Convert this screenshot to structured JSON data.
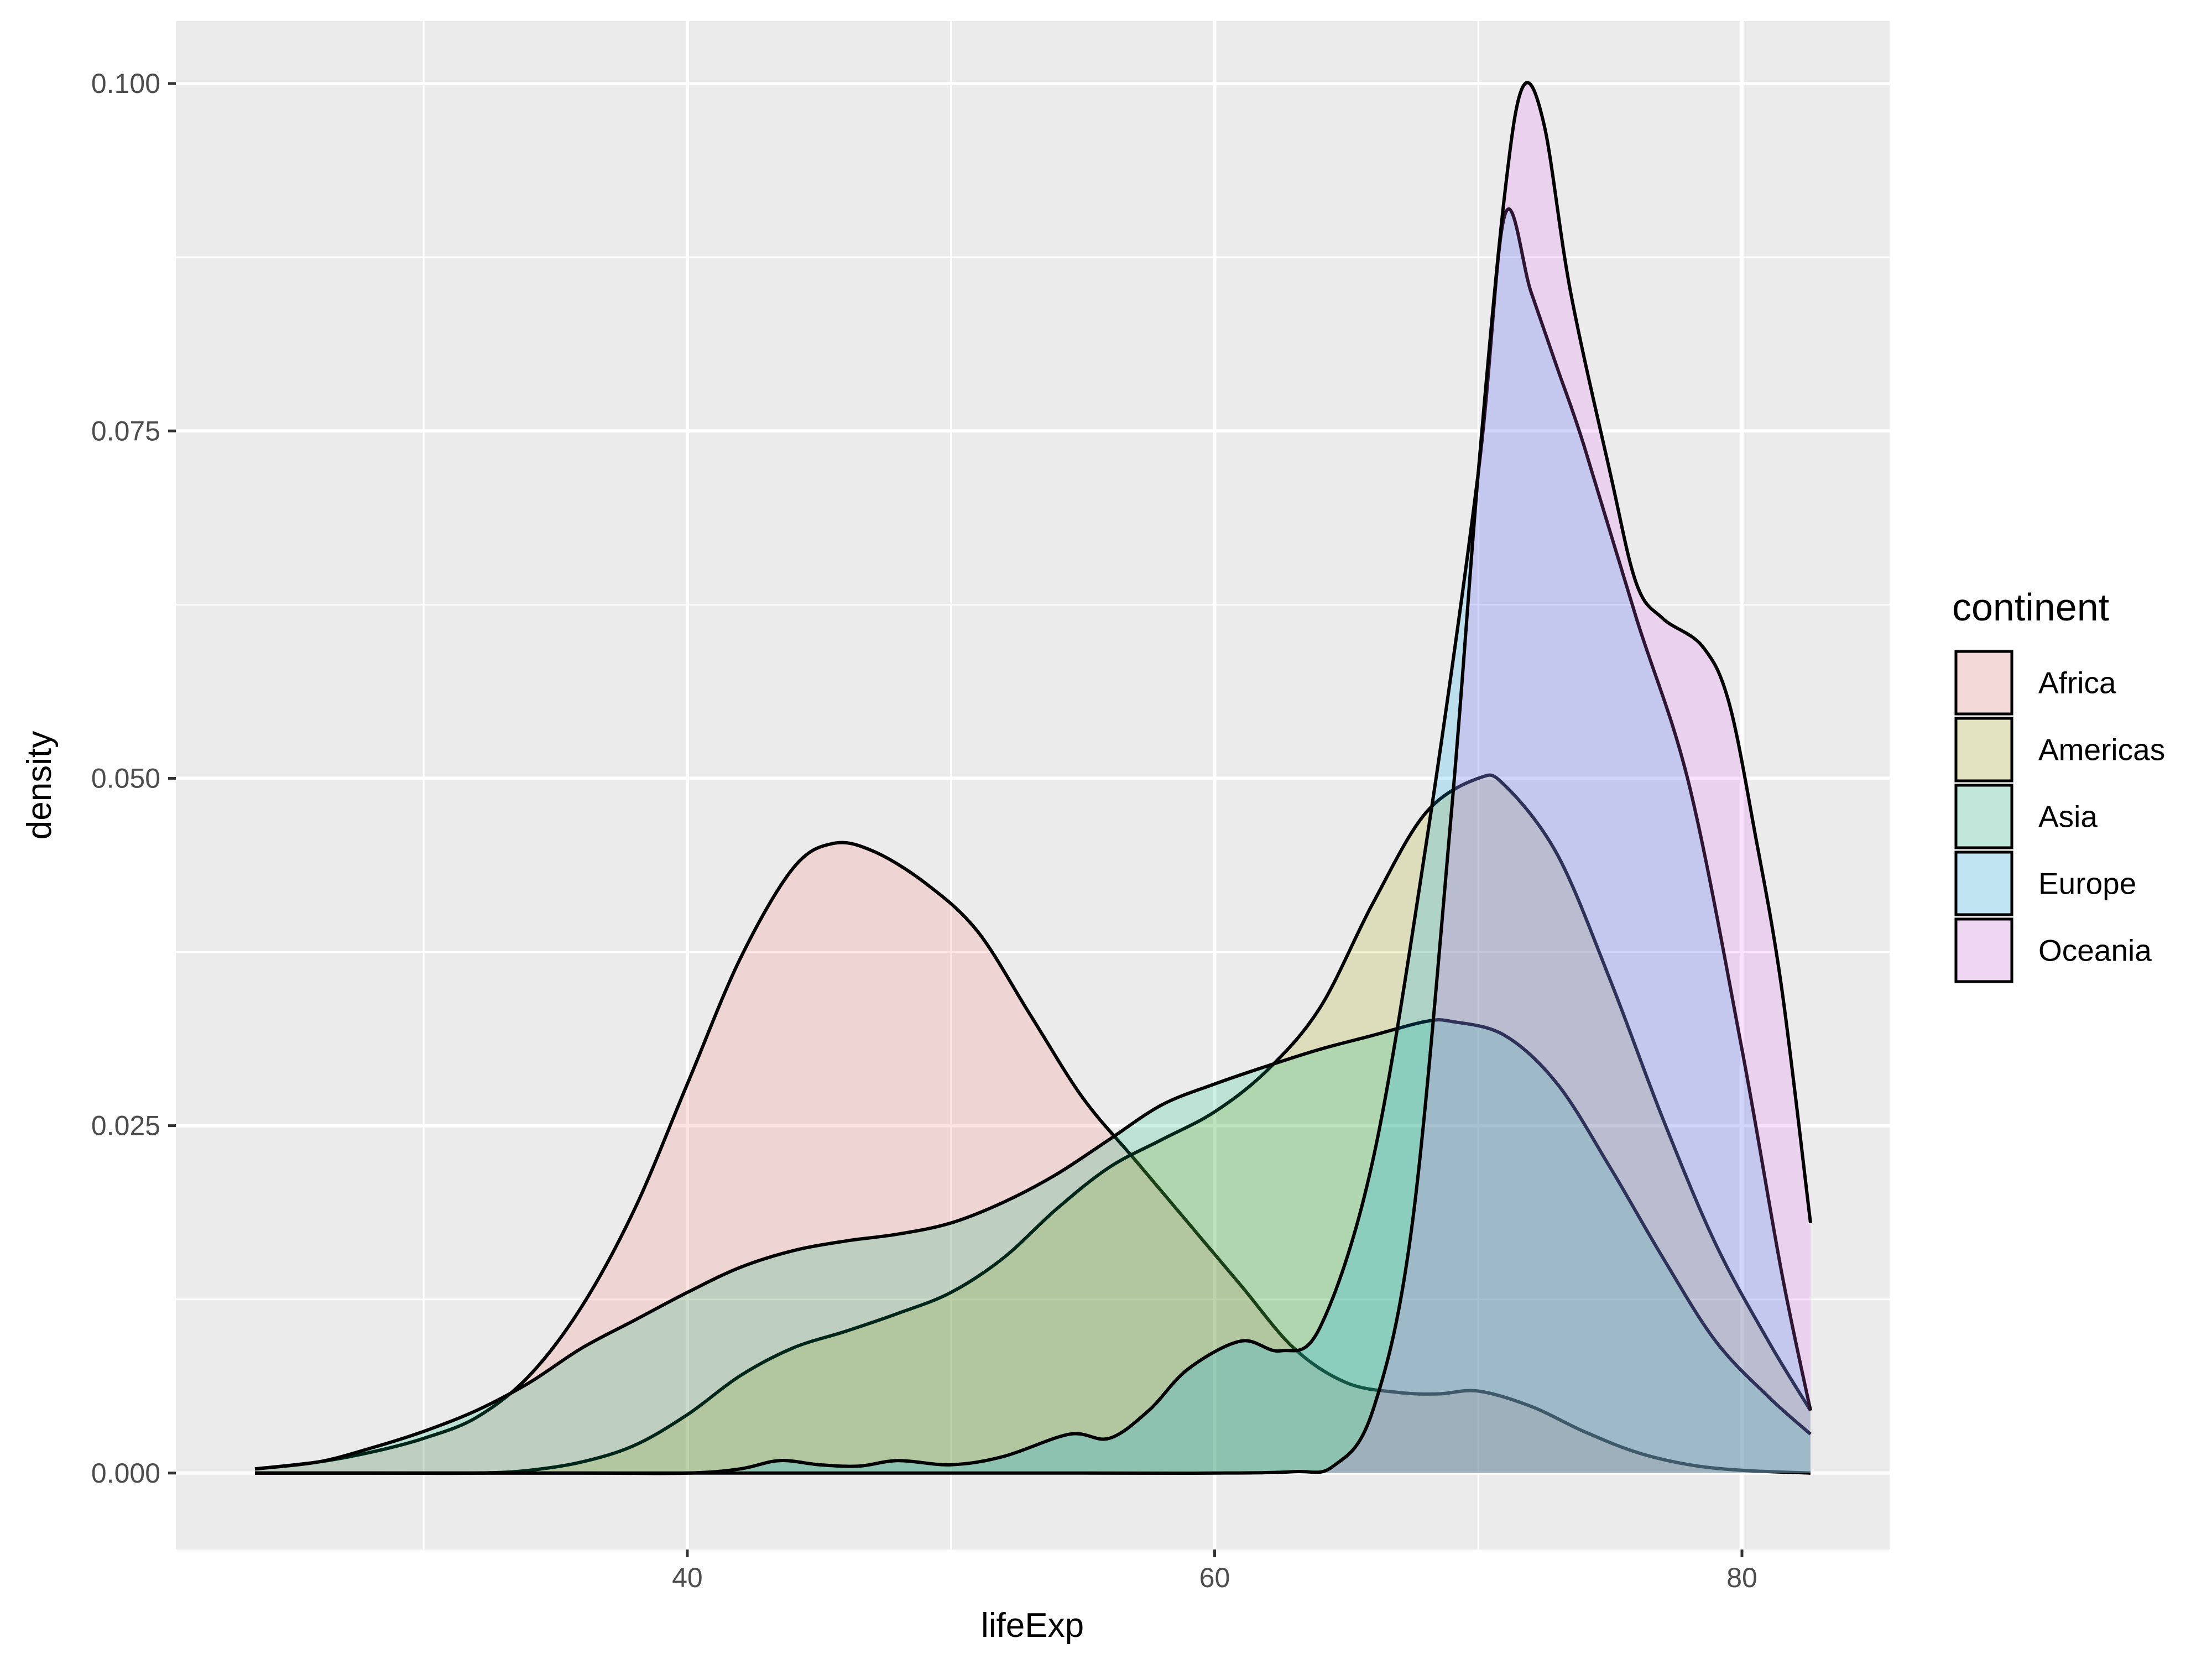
{
  "chart_data": {
    "type": "area",
    "subtype": "density",
    "xlabel": "lifeExp",
    "ylabel": "density",
    "xlim": [
      20.6,
      85.6
    ],
    "ylim": [
      -0.0055,
      0.1045
    ],
    "x_ticks": [
      40,
      60,
      80
    ],
    "x_minor_ticks": [
      30,
      50,
      70
    ],
    "y_ticks": [
      0.0,
      0.025,
      0.05,
      0.075,
      0.1
    ],
    "y_tick_labels": [
      "0.000",
      "0.025",
      "0.050",
      "0.075",
      "0.100"
    ],
    "y_minor_ticks": [
      0.0125,
      0.0375,
      0.0625,
      0.0875
    ],
    "grid": true,
    "legend": {
      "title": "continent",
      "position": "right"
    },
    "fill_opacity": 0.2,
    "series": [
      {
        "name": "Africa",
        "color": "#F8766D",
        "points": [
          [
            23.6,
            0.0003
          ],
          [
            26,
            0.0008
          ],
          [
            28,
            0.0015
          ],
          [
            30,
            0.0025
          ],
          [
            32,
            0.004
          ],
          [
            34,
            0.007
          ],
          [
            36,
            0.012
          ],
          [
            38,
            0.019
          ],
          [
            40,
            0.028
          ],
          [
            42,
            0.037
          ],
          [
            44,
            0.0435
          ],
          [
            45.5,
            0.0453
          ],
          [
            47,
            0.0448
          ],
          [
            49,
            0.0425
          ],
          [
            51,
            0.039
          ],
          [
            53,
            0.033
          ],
          [
            55,
            0.027
          ],
          [
            57,
            0.0225
          ],
          [
            59,
            0.018
          ],
          [
            61,
            0.0135
          ],
          [
            63,
            0.009
          ],
          [
            65,
            0.0065
          ],
          [
            67,
            0.0058
          ],
          [
            68.5,
            0.0057
          ],
          [
            70,
            0.0059
          ],
          [
            72,
            0.0048
          ],
          [
            74,
            0.003
          ],
          [
            76,
            0.0015
          ],
          [
            78,
            0.0006
          ],
          [
            80,
            0.0002
          ],
          [
            82.6,
            0.0
          ]
        ]
      },
      {
        "name": "Americas",
        "color": "#A3A500",
        "points": [
          [
            23.6,
            0.0
          ],
          [
            28,
            0.0
          ],
          [
            32,
            0.0
          ],
          [
            34,
            0.0002
          ],
          [
            36,
            0.0008
          ],
          [
            38,
            0.002
          ],
          [
            40,
            0.0042
          ],
          [
            42,
            0.007
          ],
          [
            44,
            0.009
          ],
          [
            46,
            0.0102
          ],
          [
            48,
            0.0115
          ],
          [
            50,
            0.013
          ],
          [
            52,
            0.0155
          ],
          [
            54,
            0.019
          ],
          [
            56,
            0.022
          ],
          [
            58,
            0.024
          ],
          [
            60,
            0.026
          ],
          [
            62,
            0.029
          ],
          [
            64,
            0.0335
          ],
          [
            66,
            0.041
          ],
          [
            68,
            0.0475
          ],
          [
            70,
            0.05
          ],
          [
            71,
            0.0495
          ],
          [
            73,
            0.0445
          ],
          [
            75,
            0.0355
          ],
          [
            77,
            0.0255
          ],
          [
            79,
            0.0165
          ],
          [
            81,
            0.0095
          ],
          [
            82.6,
            0.0045
          ]
        ]
      },
      {
        "name": "Asia",
        "color": "#00BF7D",
        "points": [
          [
            23.6,
            0.0003
          ],
          [
            26,
            0.0008
          ],
          [
            28,
            0.0018
          ],
          [
            30,
            0.003
          ],
          [
            32,
            0.0045
          ],
          [
            34,
            0.0065
          ],
          [
            36,
            0.009
          ],
          [
            38,
            0.011
          ],
          [
            40,
            0.013
          ],
          [
            42,
            0.0148
          ],
          [
            44,
            0.016
          ],
          [
            46,
            0.0167
          ],
          [
            48,
            0.0172
          ],
          [
            50,
            0.018
          ],
          [
            52,
            0.0195
          ],
          [
            54,
            0.0215
          ],
          [
            56,
            0.024
          ],
          [
            58,
            0.0265
          ],
          [
            60,
            0.028
          ],
          [
            62,
            0.0293
          ],
          [
            64,
            0.0305
          ],
          [
            66,
            0.0315
          ],
          [
            68,
            0.0325
          ],
          [
            69,
            0.0325
          ],
          [
            71,
            0.0315
          ],
          [
            73,
            0.028
          ],
          [
            75,
            0.022
          ],
          [
            77,
            0.0155
          ],
          [
            79,
            0.0095
          ],
          [
            81,
            0.0055
          ],
          [
            82.6,
            0.0028
          ]
        ]
      },
      {
        "name": "Europe",
        "color": "#00B0F6",
        "points": [
          [
            23.6,
            0.0
          ],
          [
            36,
            0.0
          ],
          [
            40,
            0.0
          ],
          [
            42,
            0.0003
          ],
          [
            43.5,
            0.0009
          ],
          [
            45,
            0.0006
          ],
          [
            46.5,
            0.0005
          ],
          [
            48,
            0.0009
          ],
          [
            50,
            0.0006
          ],
          [
            52,
            0.0012
          ],
          [
            54.5,
            0.0028
          ],
          [
            56,
            0.0025
          ],
          [
            57.5,
            0.0045
          ],
          [
            59,
            0.0075
          ],
          [
            61,
            0.0095
          ],
          [
            62.5,
            0.0088
          ],
          [
            64,
            0.0105
          ],
          [
            66,
            0.0225
          ],
          [
            68,
            0.045
          ],
          [
            70,
            0.072
          ],
          [
            71,
            0.0905
          ],
          [
            72,
            0.085
          ],
          [
            73,
            0.0795
          ],
          [
            74,
            0.074
          ],
          [
            76,
            0.0615
          ],
          [
            78,
            0.0495
          ],
          [
            80,
            0.0305
          ],
          [
            81.5,
            0.0145
          ],
          [
            82.6,
            0.0045
          ]
        ]
      },
      {
        "name": "Oceania",
        "color": "#E76BF3",
        "points": [
          [
            23.6,
            0.0
          ],
          [
            40,
            0.0
          ],
          [
            55,
            0.0
          ],
          [
            60,
            0.0
          ],
          [
            63,
            0.0001
          ],
          [
            64.5,
            0.0005
          ],
          [
            66,
            0.0045
          ],
          [
            67.5,
            0.018
          ],
          [
            69,
            0.048
          ],
          [
            70,
            0.072
          ],
          [
            71,
            0.092
          ],
          [
            71.7,
            0.0998
          ],
          [
            72.5,
            0.097
          ],
          [
            73.5,
            0.085
          ],
          [
            75,
            0.072
          ],
          [
            76,
            0.064
          ],
          [
            77,
            0.0615
          ],
          [
            78.5,
            0.0595
          ],
          [
            79.5,
            0.0555
          ],
          [
            80.5,
            0.046
          ],
          [
            81.5,
            0.035
          ],
          [
            82.6,
            0.018
          ]
        ]
      }
    ]
  }
}
